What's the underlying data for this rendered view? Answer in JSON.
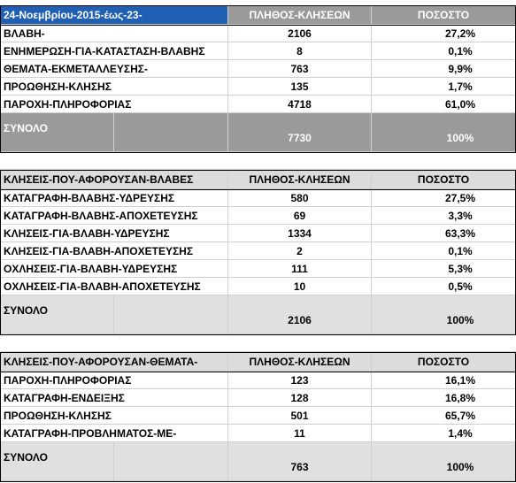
{
  "table1": {
    "header": [
      "24-Νοεμβρίου-2015-έως-23-",
      "ΠΛΗΘΟΣ-ΚΛΗΣΕΩΝ",
      "ΠΟΣΟΣΤΟ"
    ],
    "rows": [
      [
        "ΒΛΑΒΗ-",
        "2106",
        "27,2%"
      ],
      [
        "ΕΝΗΜΕΡΩΣΗ-ΓΙΑ-ΚΑΤΑΣΤΑΣΗ-ΒΛΑΒΗΣ",
        "8",
        "0,1%"
      ],
      [
        "ΘΕΜΑΤΑ-ΕΚΜΕΤΑΛΛΕΥΣΗΣ-",
        "763",
        "9,9%"
      ],
      [
        "ΠΡΟΩΘΗΣΗ-ΚΛΗΣΗΣ",
        "135",
        "1,7%"
      ],
      [
        "ΠΑΡΟΧΗ-ΠΛΗΡΟΦΟΡΙΑΣ",
        "4718",
        "61,0%"
      ]
    ],
    "total": [
      "ΣΥΝΟΛΟ",
      "7730",
      "100%"
    ]
  },
  "table2": {
    "header": [
      "ΚΛΗΣΕΙΣ-ΠΟΥ-ΑΦΟΡΟΥΣΑΝ-ΒΛΑΒΕΣ",
      "ΠΛΗΘΟΣ-ΚΛΗΣΕΩΝ",
      "ΠΟΣΟΣΤΟ"
    ],
    "rows": [
      [
        "ΚΑΤΑΓΡΑΦΗ-ΒΛΑΒΗΣ-ΥΔΡΕΥΣΗΣ",
        "580",
        "27,5%"
      ],
      [
        "ΚΑΤΑΓΡΑΦΗ-ΒΛΑΒΗΣ-ΑΠΟΧΕΤΕΥΣΗΣ",
        "69",
        "3,3%"
      ],
      [
        "ΚΛΗΣΕΙΣ-ΓΙΑ-ΒΛΑΒΗ-ΥΔΡΕΥΣΗΣ",
        "1334",
        "63,3%"
      ],
      [
        "ΚΛΗΣΕΙΣ-ΓΙΑ-ΒΛΑΒΗ-ΑΠΟΧΕΤΕΥΣΗΣ",
        "2",
        "0,1%"
      ],
      [
        "ΟΧΛΗΣΕΙΣ-ΓΙΑ-ΒΛΑΒΗ-ΥΔΡΕΥΣΗΣ",
        "111",
        "5,3%"
      ],
      [
        "ΟΧΛΗΣΕΙΣ-ΓΙΑ-ΒΛΑΒΗ-ΑΠΟΧΕΤΕΥΣΗΣ",
        "10",
        "0,5%"
      ]
    ],
    "total": [
      "ΣΥΝΟΛΟ",
      "2106",
      "100%"
    ]
  },
  "table3": {
    "header": [
      "ΚΛΗΣΕΙΣ-ΠΟΥ-ΑΦΟΡΟΥΣΑΝ-ΘΕΜΑΤΑ-",
      "ΠΛΗΘΟΣ-ΚΛΗΣΕΩΝ",
      "ΠΟΣΟΣΤΟ"
    ],
    "rows": [
      [
        "ΠΑΡΟΧΗ-ΠΛΗΡΟΦΟΡΙΑΣ",
        "123",
        "16,1%"
      ],
      [
        "ΚΑΤΑΓΡΑΦΗ-ΕΝΔΕΙΞΗΣ",
        "128",
        "16,8%"
      ],
      [
        "ΠΡΟΩΘΗΣΗ-ΚΛΗΣΗΣ",
        "501",
        "65,7%"
      ],
      [
        "ΚΑΤΑΓΡΑΦΗ-ΠΡΟΒΛΗΜΑΤΟΣ-ΜΕ-",
        "11",
        "1,4%"
      ]
    ],
    "total": [
      "ΣΥΝΟΛΟ",
      "763",
      "100%"
    ]
  }
}
